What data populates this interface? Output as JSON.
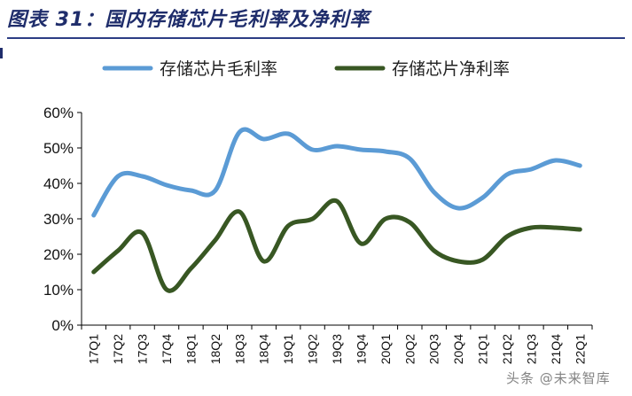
{
  "header": {
    "title": "图表 31：国内存储芯片毛利率及净利率"
  },
  "watermark": {
    "text": "头条 @未来智库"
  },
  "chart_data": {
    "type": "line",
    "title": "图表 31：国内存储芯片毛利率及净利率",
    "xlabel": "",
    "ylabel": "",
    "ylim": [
      0,
      60
    ],
    "yticks": [
      "0%",
      "10%",
      "20%",
      "30%",
      "40%",
      "50%",
      "60%"
    ],
    "legend_position": "top",
    "categories": [
      "17Q1",
      "17Q2",
      "17Q3",
      "17Q4",
      "18Q1",
      "18Q2",
      "18Q3",
      "18Q4",
      "19Q1",
      "19Q2",
      "19Q3",
      "19Q4",
      "20Q1",
      "20Q2",
      "20Q3",
      "20Q4",
      "21Q1",
      "21Q2",
      "21Q3",
      "21Q4",
      "22Q1"
    ],
    "series": [
      {
        "name": "存储芯片毛利率",
        "color": "#5b9bd5",
        "values": [
          31,
          42,
          42,
          39.5,
          38,
          38,
          54.5,
          52.5,
          54,
          49.5,
          50.5,
          49.5,
          49,
          47,
          37.5,
          33,
          36,
          42.5,
          44,
          46.5,
          45
        ]
      },
      {
        "name": "存储芯片净利率",
        "color": "#385723",
        "values": [
          15,
          21,
          26,
          10,
          16,
          24,
          32,
          18,
          28,
          30,
          35,
          23,
          30,
          29,
          21,
          18,
          18.5,
          25,
          27.5,
          27.5,
          27
        ]
      }
    ]
  }
}
